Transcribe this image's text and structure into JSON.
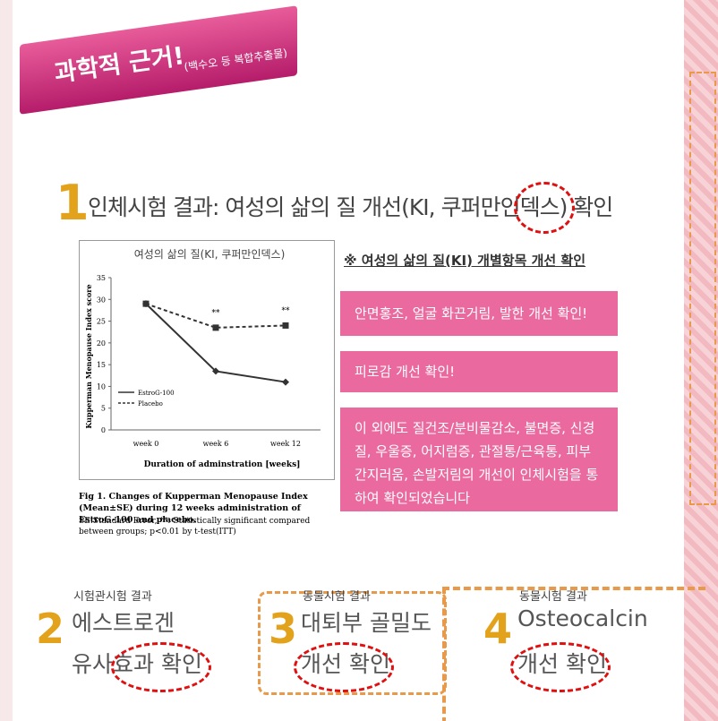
{
  "banner": {
    "title": "과학적 근거!",
    "subtitle": "(백수오 등 복합추출물)"
  },
  "section1": {
    "number": "1",
    "heading": "인체시험 결과: 여성의 삶의 질 개선(KI, 쿠퍼만인덱스) 확인",
    "caption": "Fig 1. Changes of Kupperman Menopause Index (Mean±SE) during 12 weeks administration of EstroG-100 and placebo.",
    "note": "SE:Standard Error, **: Statistically significant compared between groups; p<0.01 by t-test(ITT)"
  },
  "chart_data": {
    "type": "line",
    "title": "여성의 삶의 질(KI, 쿠퍼만인덱스)",
    "y_label": "Kupperman Menopause Index score",
    "x_label": "Duration of adminstration [weeks]",
    "categories": [
      "week 0",
      "week 6",
      "week 12"
    ],
    "series": [
      {
        "name": "EstroG-100",
        "color": "#333333",
        "values": [
          29,
          13.5,
          11
        ]
      },
      {
        "name": "Placebo",
        "color": "#333333",
        "values": [
          29,
          23.5,
          24
        ]
      }
    ],
    "annotations": [
      "**",
      "**"
    ],
    "ylim": [
      0,
      35
    ],
    "yticks": [
      0,
      5,
      10,
      15,
      20,
      25,
      30,
      35
    ]
  },
  "info": {
    "heading": "※ 여성의 삶의 질(KI) 개별항목 개선 확인",
    "boxes": [
      "안면홍조, 얼굴 화끈거림, 발한 개선 확인!",
      "피로감 개선 확인!",
      "이 외에도 질건조/분비물감소, 불면증, 신경질, 우울증, 어지럼증, 관절통/근육통, 피부 간지러움, 손발저림의 개선이 인체시험을 통하여 확인되었습니다"
    ]
  },
  "results": [
    {
      "number": "2",
      "kind": "시험관시험 결과",
      "line1": "에스트로겐",
      "line2": "유사효과 확인"
    },
    {
      "number": "3",
      "kind": "동물시험 결과",
      "line1": "대퇴부 골밀도",
      "line2": "개선 확인"
    },
    {
      "number": "4",
      "kind": "동물시험 결과",
      "line1": "Osteocalcin",
      "line2": "개선 확인"
    }
  ]
}
